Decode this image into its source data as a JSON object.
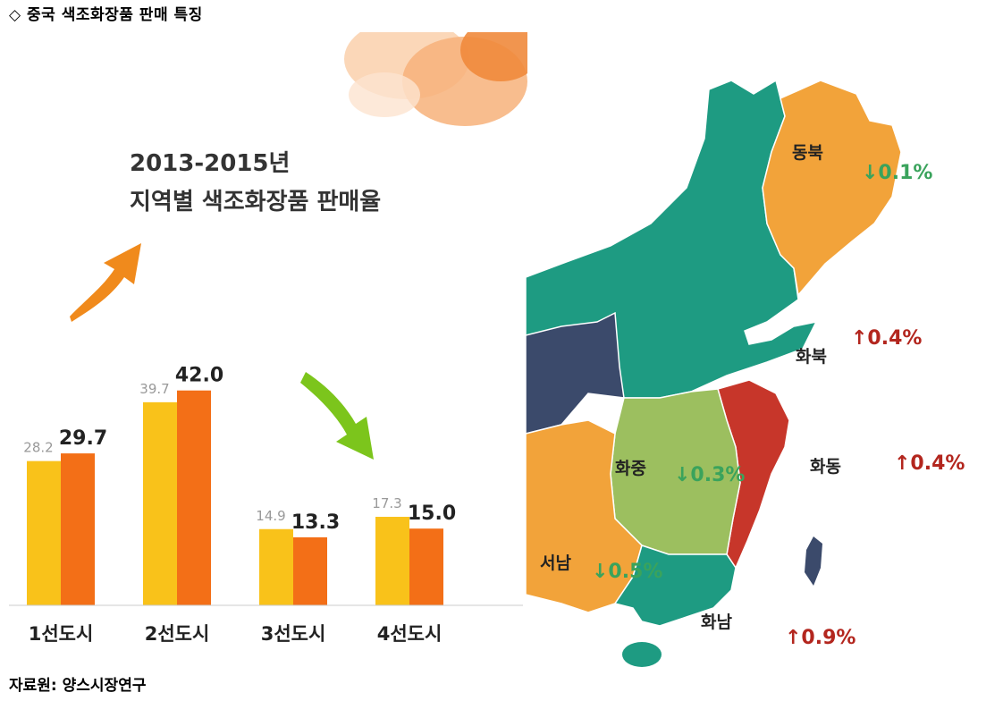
{
  "page": {
    "title": "◇ 중국 색조화장품 판매 특징",
    "source": "자료원: 양스시장연구"
  },
  "chart_data": {
    "type": "bar",
    "title_line1": "2013-2015년",
    "title_line2": "지역별 색조화장품 판매율",
    "categories": [
      "1선도시",
      "2선도시",
      "3선도시",
      "4선도시"
    ],
    "series": [
      {
        "values": [
          28.2,
          39.7,
          14.9,
          17.3
        ],
        "color": "#f9c21a",
        "label_color": "#999999"
      },
      {
        "values": [
          29.7,
          42.0,
          13.3,
          15.0
        ],
        "color": "#f36f17",
        "label_color": "#222222"
      }
    ],
    "ylim": [
      0,
      45
    ],
    "label_texts": {
      "first": [
        "28.2",
        "39.7",
        "14.9",
        "17.3"
      ],
      "second": [
        "29.7",
        "42.0",
        "13.3",
        "15.0"
      ]
    },
    "arrow_up_color": "#f08a1c",
    "arrow_down_color": "#7cc51c"
  },
  "map": {
    "regions": [
      {
        "name": "동북",
        "change": "↓0.1%",
        "direction": "down",
        "fill": "#f2a33a"
      },
      {
        "name": "화북",
        "change": "↑0.4%",
        "direction": "up",
        "fill": "#1e9b82"
      },
      {
        "name": "화동",
        "change": "↑0.4%",
        "direction": "up",
        "fill": "#c7362a"
      },
      {
        "name": "화중",
        "change": "↓0.3%",
        "direction": "down",
        "fill": "#9cbf5f"
      },
      {
        "name": "서남",
        "change": "↓0.5%",
        "direction": "down",
        "fill": "#f2a33a"
      },
      {
        "name": "화남",
        "change": "↑0.9%",
        "direction": "up",
        "fill": "#1e9b82"
      }
    ],
    "colors": {
      "up_text": "#b3261e",
      "down_text": "#3aa35c",
      "northwest": "#3b4a6b",
      "taiwan": "#3b4a6b"
    }
  }
}
